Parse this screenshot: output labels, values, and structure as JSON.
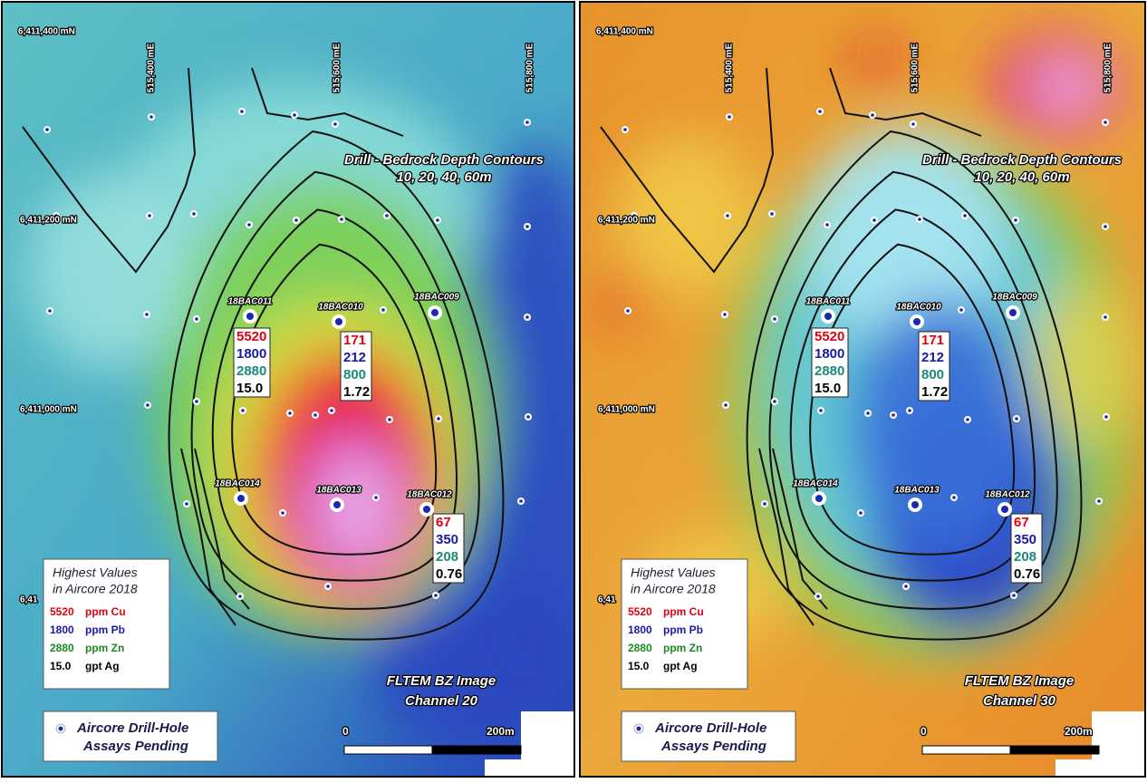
{
  "panels": [
    {
      "image": "FLTEM BZ Image",
      "channel": "Channel 20"
    },
    {
      "image": "FLTEM BZ Image",
      "channel": "Channel 30"
    }
  ],
  "northings": [
    "6,411,400 mN",
    "6,411,200 mN",
    "6,411,000 mN",
    "6,41"
  ],
  "eastings": [
    "515,400 mE",
    "515,600 mE",
    "515,800 mE"
  ],
  "contours": {
    "title": "Drill - Bedrock Depth Contours",
    "levels": "10, 20, 40, 60m"
  },
  "holes": [
    "18BAC011",
    "18BAC010",
    "18BAC009",
    "18BAC014",
    "18BAC013",
    "18BAC012"
  ],
  "assays": [
    {
      "cu": "5520",
      "pb": "1800",
      "zn": "2880",
      "ag": "15.0"
    },
    {
      "cu": "171",
      "pb": "212",
      "zn": "800",
      "ag": "1.72"
    },
    {
      "cu": "67",
      "pb": "350",
      "zn": "208",
      "ag": "0.76"
    }
  ],
  "legend": {
    "title": [
      "Highest Values",
      "in Aircore 2018"
    ],
    "rows": [
      {
        "value": "5520",
        "unit": "ppm Cu"
      },
      {
        "value": "1800",
        "unit": "ppm Pb"
      },
      {
        "value": "2880",
        "unit": "ppm Zn"
      },
      {
        "value": "15.0",
        "unit": "gpt Ag"
      }
    ]
  },
  "drill_legend": [
    "Aircore Drill-Hole",
    "Assays Pending"
  ],
  "scale": {
    "start": "0",
    "end": "200m"
  }
}
